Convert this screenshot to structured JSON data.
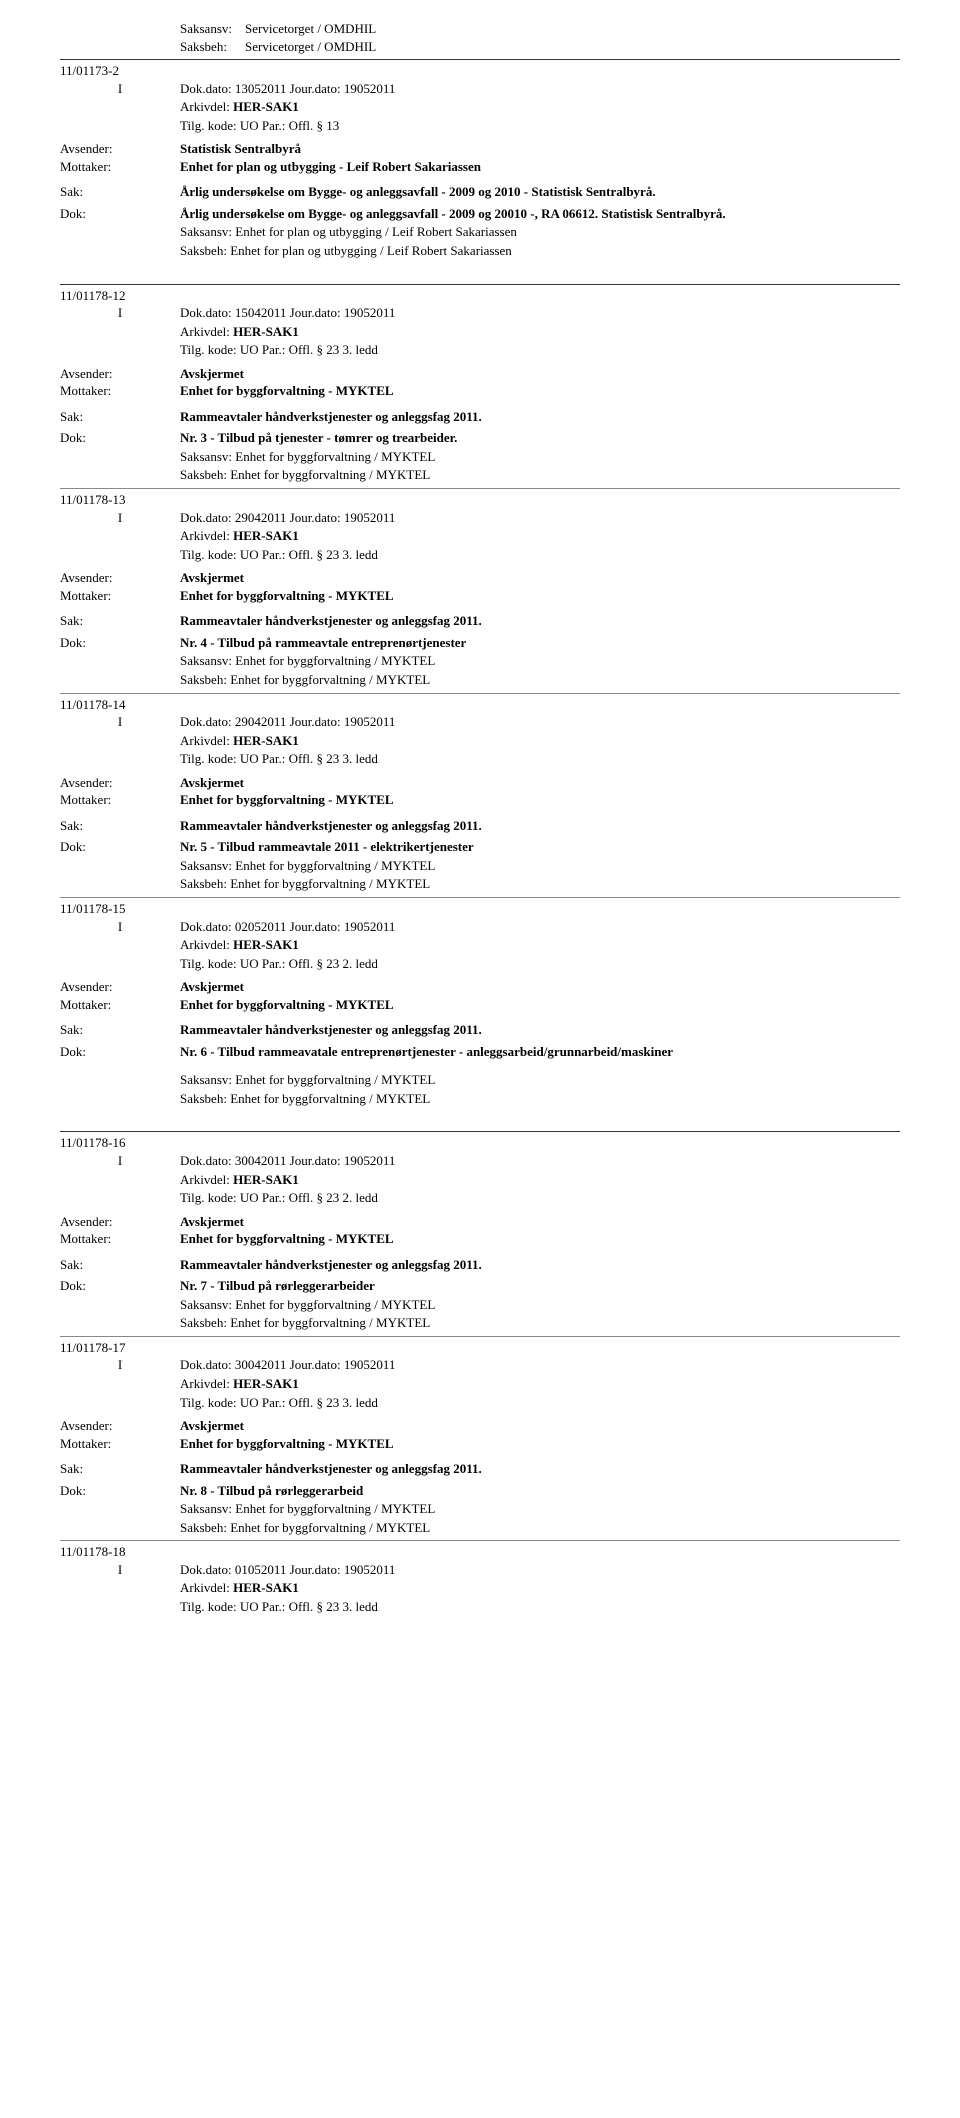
{
  "topHeader": {
    "line1Label": "Saksansv:",
    "line1Value": "Servicetorget / OMDHIL",
    "line2Label": "Saksbeh:",
    "line2Value": "Servicetorget / OMDHIL"
  },
  "entries": [
    {
      "caseNo": "11/01173-2",
      "typeLetter": "I",
      "dokDato": "Dok.dato: 13052011   Jour.dato:   19052011",
      "arkivdel": "Arkivdel:    HER-SAK1",
      "tilg": "Tilg. kode:  UO      Par.:  Offl. § 13",
      "avsenderLabel": "Avsender:",
      "avsenderValue": "Statistisk Sentralbyrå",
      "mottakerLabel": "Mottaker:",
      "mottakerValue": "Enhet for plan og utbygging - Leif Robert Sakariassen",
      "sakLabel": "Sak:",
      "sakValue": "Årlig undersøkelse om Bygge- og anleggsavfall - 2009 og 2010 - Statistisk Sentralbyrå.",
      "dokLabel": "Dok:",
      "dokValue": "Årlig undersøkelse om Bygge- og anleggsavfall - 2009 og 20010 -, RA 06612. Statistisk Sentralbyrå.",
      "saksansv": "Saksansv:  Enhet for plan og utbygging / Leif Robert Sakariassen",
      "saksbeh": "Saksbeh:  Enhet for plan og utbygging / Leif Robert Sakariassen"
    },
    {
      "caseNo": "11/01178-12",
      "typeLetter": "I",
      "dokDato": "Dok.dato: 15042011   Jour.dato:   19052011",
      "arkivdel": "Arkivdel:    HER-SAK1",
      "tilg": "Tilg. kode:  UO      Par.:  Offl. § 23 3. ledd",
      "avsenderLabel": "Avsender:",
      "avsenderValue": "Avskjermet",
      "mottakerLabel": "Mottaker:",
      "mottakerValue": "Enhet for byggforvaltning - MYKTEL",
      "sakLabel": "Sak:",
      "sakValue": "Rammeavtaler håndverkstjenester og anleggsfag 2011.",
      "dokLabel": "Dok:",
      "dokValue": "Nr. 3 - Tilbud på tjenester - tømrer og trearbeider.",
      "saksansv": "Saksansv:  Enhet for byggforvaltning / MYKTEL",
      "saksbeh": "Saksbeh:  Enhet for byggforvaltning / MYKTEL"
    },
    {
      "caseNo": "11/01178-13",
      "typeLetter": "I",
      "dokDato": "Dok.dato: 29042011   Jour.dato:   19052011",
      "arkivdel": "Arkivdel:    HER-SAK1",
      "tilg": "Tilg. kode:  UO      Par.:  Offl. § 23 3. ledd",
      "avsenderLabel": "Avsender:",
      "avsenderValue": "Avskjermet",
      "mottakerLabel": "Mottaker:",
      "mottakerValue": "Enhet for byggforvaltning - MYKTEL",
      "sakLabel": "Sak:",
      "sakValue": "Rammeavtaler håndverkstjenester og anleggsfag 2011.",
      "dokLabel": "Dok:",
      "dokValue": "Nr. 4 - Tilbud på rammeavtale entreprenørtjenester",
      "saksansv": "Saksansv:  Enhet for byggforvaltning / MYKTEL",
      "saksbeh": "Saksbeh:  Enhet for byggforvaltning / MYKTEL"
    },
    {
      "caseNo": "11/01178-14",
      "typeLetter": "I",
      "dokDato": "Dok.dato: 29042011   Jour.dato:   19052011",
      "arkivdel": "Arkivdel:    HER-SAK1",
      "tilg": "Tilg. kode:  UO      Par.:  Offl. § 23 3. ledd",
      "avsenderLabel": "Avsender:",
      "avsenderValue": "Avskjermet",
      "mottakerLabel": "Mottaker:",
      "mottakerValue": "Enhet for byggforvaltning - MYKTEL",
      "sakLabel": "Sak:",
      "sakValue": "Rammeavtaler håndverkstjenester og anleggsfag 2011.",
      "dokLabel": "Dok:",
      "dokValue": "Nr. 5 - Tilbud rammeavtale 2011 - elektrikertjenester",
      "saksansv": "Saksansv:  Enhet for byggforvaltning / MYKTEL",
      "saksbeh": "Saksbeh:  Enhet for byggforvaltning / MYKTEL"
    },
    {
      "caseNo": "11/01178-15",
      "typeLetter": "I",
      "dokDato": "Dok.dato: 02052011   Jour.dato:   19052011",
      "arkivdel": "Arkivdel:    HER-SAK1",
      "tilg": "Tilg. kode:  UO      Par.:  Offl. § 23 2. ledd",
      "avsenderLabel": "Avsender:",
      "avsenderValue": "Avskjermet",
      "mottakerLabel": "Mottaker:",
      "mottakerValue": "Enhet for byggforvaltning - MYKTEL",
      "sakLabel": "Sak:",
      "sakValue": "Rammeavtaler håndverkstjenester og anleggsfag 2011.",
      "dokLabel": "Dok:",
      "dokValue": "Nr. 6 - Tilbud rammeavatale entreprenørtjenester - anleggsarbeid/grunnarbeid/maskiner",
      "saksansv": "Saksansv:  Enhet for byggforvaltning / MYKTEL",
      "saksbeh": "Saksbeh:  Enhet for byggforvaltning / MYKTEL"
    },
    {
      "caseNo": "11/01178-16",
      "typeLetter": "I",
      "dokDato": "Dok.dato: 30042011   Jour.dato:   19052011",
      "arkivdel": "Arkivdel:    HER-SAK1",
      "tilg": "Tilg. kode:  UO      Par.:  Offl. § 23 2. ledd",
      "avsenderLabel": "Avsender:",
      "avsenderValue": "Avskjermet",
      "mottakerLabel": "Mottaker:",
      "mottakerValue": "Enhet for byggforvaltning - MYKTEL",
      "sakLabel": "Sak:",
      "sakValue": "Rammeavtaler håndverkstjenester og anleggsfag 2011.",
      "dokLabel": "Dok:",
      "dokValue": "Nr. 7 - Tilbud på rørleggerarbeider",
      "saksansv": "Saksansv:  Enhet for byggforvaltning / MYKTEL",
      "saksbeh": "Saksbeh:  Enhet for byggforvaltning / MYKTEL"
    },
    {
      "caseNo": "11/01178-17",
      "typeLetter": "I",
      "dokDato": "Dok.dato: 30042011   Jour.dato:   19052011",
      "arkivdel": "Arkivdel:    HER-SAK1",
      "tilg": "Tilg. kode:  UO      Par.:  Offl. § 23 3. ledd",
      "avsenderLabel": "Avsender:",
      "avsenderValue": "Avskjermet",
      "mottakerLabel": "Mottaker:",
      "mottakerValue": "Enhet for byggforvaltning - MYKTEL",
      "sakLabel": "Sak:",
      "sakValue": "Rammeavtaler håndverkstjenester og anleggsfag 2011.",
      "dokLabel": "Dok:",
      "dokValue": "Nr. 8 - Tilbud på rørleggerarbeid",
      "saksansv": "Saksansv:  Enhet for byggforvaltning / MYKTEL",
      "saksbeh": "Saksbeh:  Enhet for byggforvaltning / MYKTEL"
    },
    {
      "caseNo": "11/01178-18",
      "typeLetter": "I",
      "dokDato": "Dok.dato: 01052011   Jour.dato:   19052011",
      "arkivdel": "Arkivdel:    HER-SAK1",
      "tilg": "Tilg. kode:  UO      Par.:  Offl. § 23 3. ledd",
      "partial": true
    }
  ]
}
